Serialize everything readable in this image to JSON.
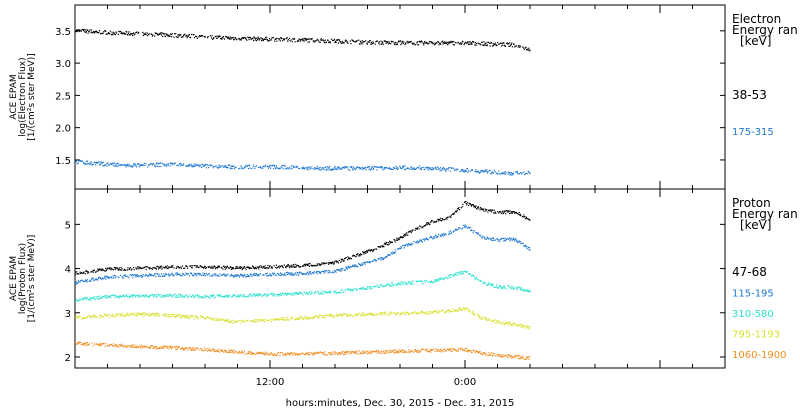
{
  "chart_data": [
    {
      "type": "scatter",
      "panel": "electron",
      "ylabel": [
        "ACE EPAM",
        "log(Electron Flux)",
        "[1/(cm²s ster MeV)]"
      ],
      "ylim": [
        1.05,
        3.9
      ],
      "yticks": [
        1.5,
        2.0,
        2.5,
        3.0,
        3.5
      ],
      "ytick_labels": [
        "1.5",
        "2.0",
        "2.5",
        "3.0",
        "3.5"
      ],
      "legend_title": [
        "Electron",
        "Energy ran",
        "[keV]"
      ],
      "series": [
        {
          "name": "38-53",
          "color": "#000000",
          "x": [
            0,
            3,
            6,
            9,
            12,
            15,
            18,
            21,
            24,
            27,
            28
          ],
          "y": [
            3.51,
            3.47,
            3.44,
            3.4,
            3.38,
            3.36,
            3.33,
            3.32,
            3.32,
            3.29,
            3.22
          ]
        },
        {
          "name": "175-315",
          "color": "#1e78d2",
          "x": [
            0,
            3,
            6,
            9,
            12,
            15,
            18,
            21,
            24,
            27,
            28
          ],
          "y": [
            1.48,
            1.42,
            1.44,
            1.4,
            1.4,
            1.38,
            1.38,
            1.39,
            1.35,
            1.3,
            1.32
          ]
        }
      ]
    },
    {
      "type": "scatter",
      "panel": "proton",
      "ylabel": [
        "ACE EPAM",
        "log(Proton Flux)",
        "[1/(cm²s ster MeV)]"
      ],
      "ylim": [
        1.75,
        5.8
      ],
      "yticks": [
        2,
        3,
        4,
        5
      ],
      "ytick_labels": [
        "2",
        "3",
        "4",
        "5"
      ],
      "legend_title": [
        "Proton",
        "Energy ran",
        "[keV]"
      ],
      "series": [
        {
          "name": "47-68",
          "color": "#000000",
          "x": [
            0,
            2,
            4,
            6,
            8,
            10,
            12,
            14,
            16,
            18,
            19,
            20,
            21,
            22,
            23,
            24,
            25,
            26,
            27,
            28
          ],
          "y": [
            3.9,
            4.0,
            4.02,
            4.05,
            4.05,
            4.02,
            4.05,
            4.08,
            4.15,
            4.4,
            4.55,
            4.7,
            4.92,
            5.08,
            5.18,
            5.5,
            5.35,
            5.28,
            5.3,
            5.12
          ]
        },
        {
          "name": "115-195",
          "color": "#1e78d2",
          "x": [
            0,
            2,
            4,
            6,
            8,
            10,
            12,
            14,
            16,
            18,
            19,
            20,
            21,
            22,
            23,
            24,
            25,
            26,
            27,
            28
          ],
          "y": [
            3.7,
            3.82,
            3.85,
            3.88,
            3.88,
            3.85,
            3.88,
            3.9,
            3.95,
            4.15,
            4.25,
            4.48,
            4.62,
            4.72,
            4.82,
            4.98,
            4.72,
            4.66,
            4.68,
            4.45
          ]
        },
        {
          "name": "310-580",
          "color": "#30e0d0",
          "x": [
            0,
            2,
            4,
            6,
            8,
            10,
            12,
            14,
            16,
            18,
            20,
            22,
            24,
            25,
            26,
            27,
            28
          ],
          "y": [
            3.3,
            3.38,
            3.4,
            3.4,
            3.38,
            3.4,
            3.42,
            3.45,
            3.48,
            3.58,
            3.68,
            3.72,
            3.95,
            3.7,
            3.6,
            3.58,
            3.5
          ]
        },
        {
          "name": "795-1193",
          "color": "#d8e030",
          "x": [
            0,
            2,
            4,
            6,
            8,
            10,
            12,
            14,
            16,
            18,
            20,
            22,
            24,
            25,
            26,
            27,
            28
          ],
          "y": [
            2.9,
            2.95,
            2.98,
            2.95,
            2.9,
            2.8,
            2.85,
            2.9,
            2.95,
            2.98,
            3.0,
            3.02,
            3.1,
            2.9,
            2.8,
            2.75,
            2.68
          ]
        },
        {
          "name": "1060-1900",
          "color": "#f08c1e",
          "x": [
            0,
            2,
            4,
            6,
            8,
            10,
            12,
            14,
            16,
            18,
            20,
            22,
            24,
            25,
            26,
            27,
            28
          ],
          "y": [
            2.32,
            2.28,
            2.25,
            2.22,
            2.18,
            2.12,
            2.08,
            2.08,
            2.1,
            2.12,
            2.14,
            2.16,
            2.18,
            2.1,
            2.05,
            2.02,
            1.98
          ]
        }
      ]
    }
  ],
  "x_axis": {
    "label": "hours:minutes, Dec. 30, 2015 - Dec. 31, 2015",
    "range_hours": [
      0,
      40
    ],
    "ticks": [
      12,
      24
    ],
    "tick_labels": [
      "12:00",
      "0:00"
    ]
  }
}
